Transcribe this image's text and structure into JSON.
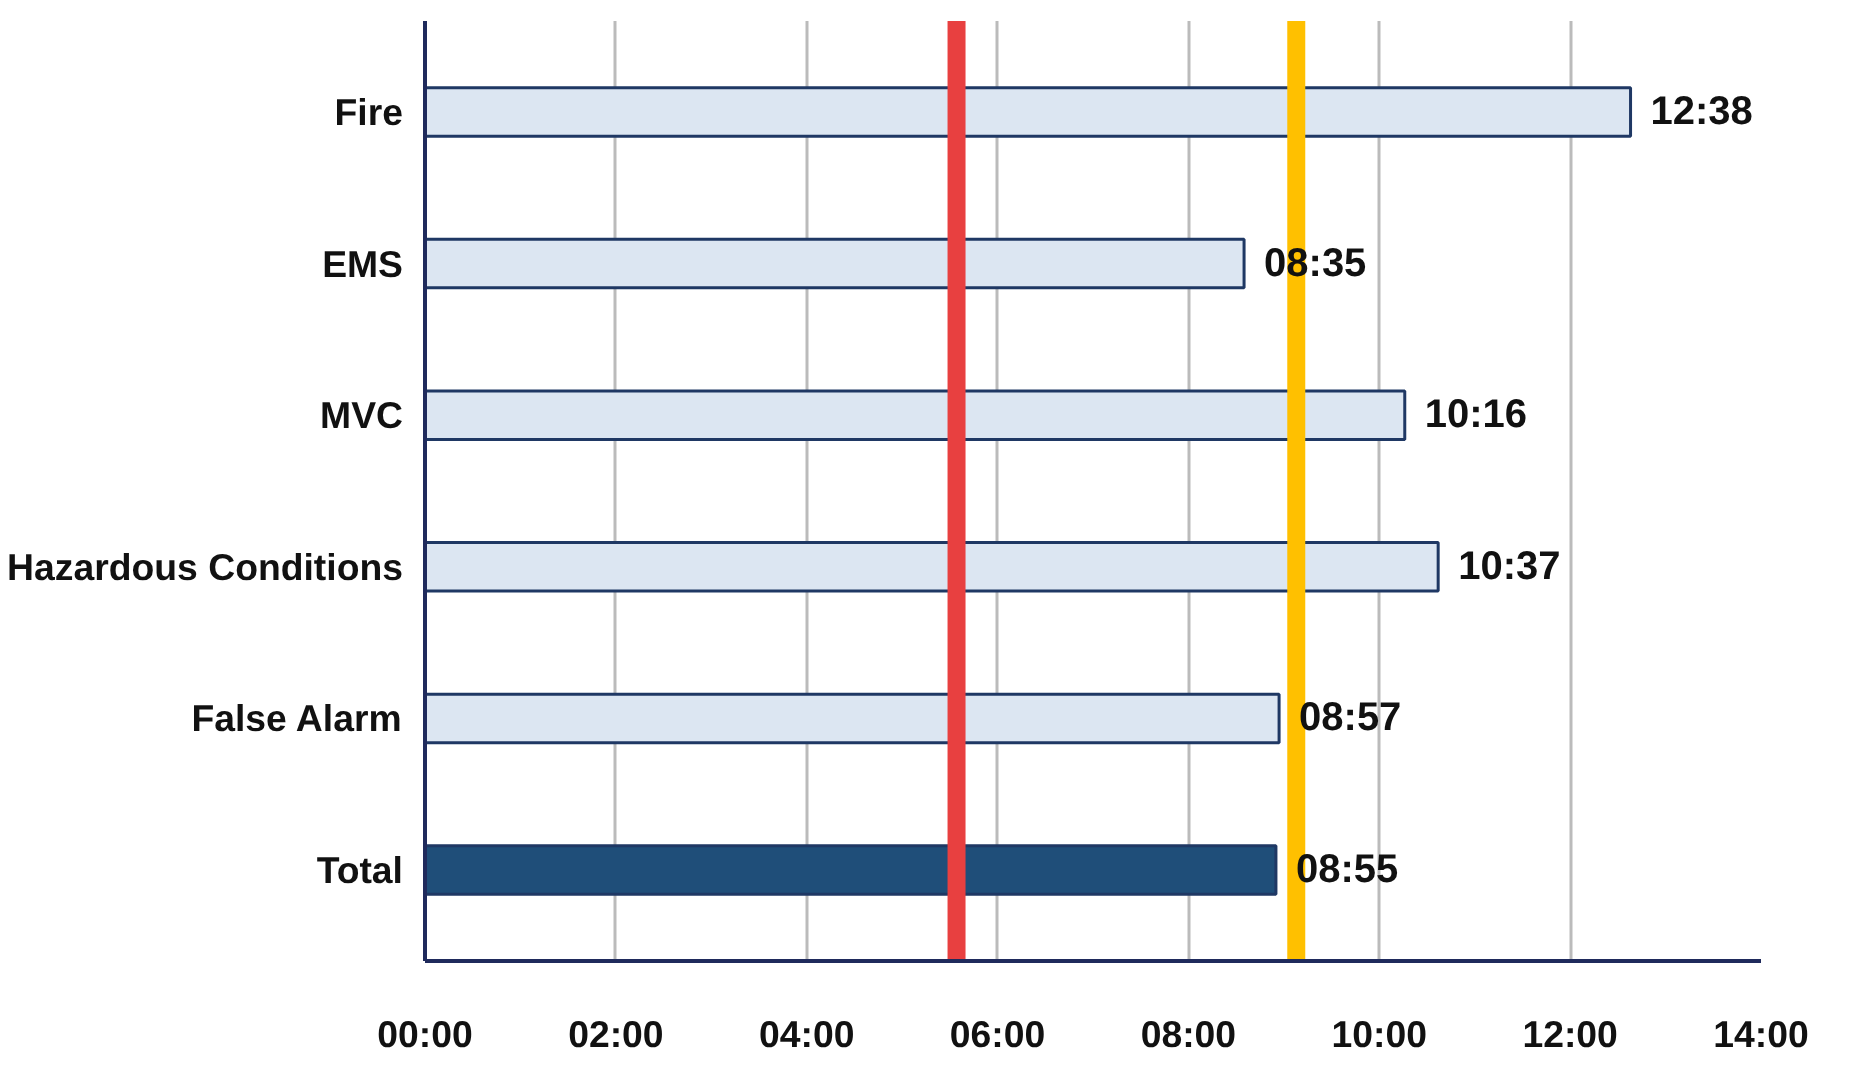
{
  "chart_data": {
    "type": "bar",
    "orientation": "horizontal",
    "categories": [
      "Fire",
      "EMS",
      "MVC",
      "Hazardous Conditions",
      "False Alarm",
      "Total"
    ],
    "values": [
      12.633,
      8.583,
      10.267,
      10.617,
      8.95,
      8.917
    ],
    "colors": [
      "#dce6f2",
      "#dce6f2",
      "#dce6f2",
      "#dce6f2",
      "#dce6f2",
      "#1f4e79"
    ],
    "value_labels": [
      "12:38",
      "08:35",
      "10:16",
      "10:37",
      "08:57",
      "08:55"
    ],
    "xlim": [
      0,
      14
    ],
    "xticks": [
      {
        "value": 0,
        "label": "00:00"
      },
      {
        "value": 2,
        "label": "02:00"
      },
      {
        "value": 4,
        "label": "04:00"
      },
      {
        "value": 6,
        "label": "06:00"
      },
      {
        "value": 8,
        "label": "08:00"
      },
      {
        "value": 10,
        "label": "10:00"
      },
      {
        "value": 12,
        "label": "12:00"
      },
      {
        "value": 14,
        "label": "14:00"
      }
    ],
    "ref_lines": [
      {
        "axis": "x",
        "value": 5.57,
        "label": null,
        "color": "#e84040"
      },
      {
        "axis": "x",
        "value": 9.13,
        "label": null,
        "color": "#ffc000"
      }
    ],
    "grid": "x"
  }
}
